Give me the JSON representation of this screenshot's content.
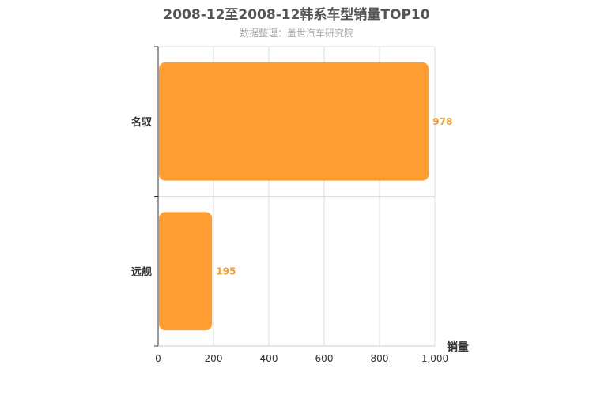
{
  "chart_data": {
    "type": "bar",
    "orientation": "horizontal",
    "title": "2008-12至2008-12韩系车型销量TOP10",
    "subtitle": "数据整理：盖世汽车研究院",
    "categories": [
      "名驭",
      "远舰"
    ],
    "values": [
      978,
      195
    ],
    "value_labels": [
      "978",
      "195"
    ],
    "xlabel": "销量",
    "ylabel": "",
    "xlim": [
      0,
      1000
    ],
    "x_ticks": [
      0,
      200,
      400,
      600,
      800,
      1000
    ],
    "x_tick_labels": [
      "0",
      "200",
      "400",
      "600",
      "800",
      "1,000"
    ],
    "grid": true,
    "legend": "none",
    "colors": {
      "bar": "#ff9d33",
      "value_label": "#f0a030",
      "grid": "#dddddd",
      "axis": "#333333"
    }
  }
}
